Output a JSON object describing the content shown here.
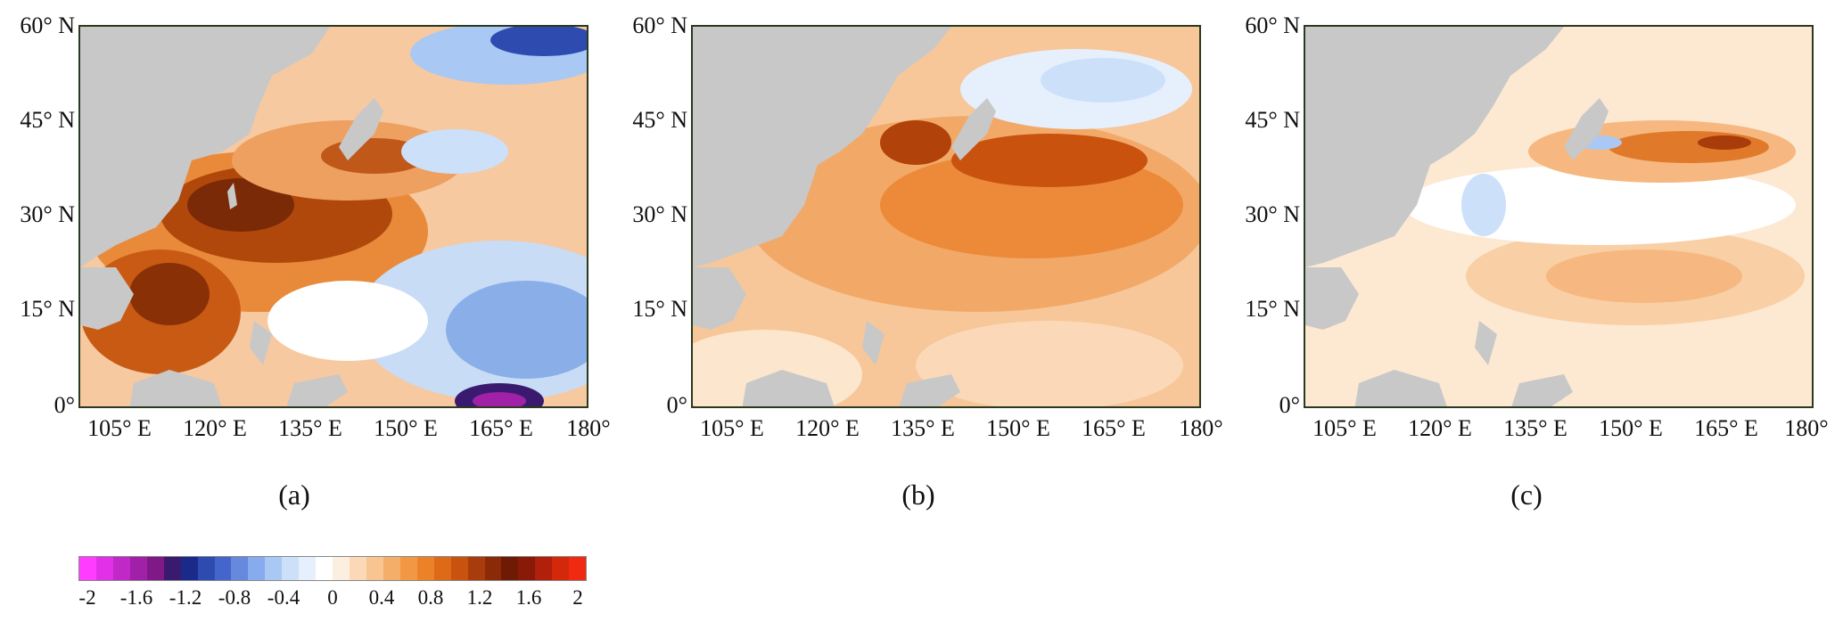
{
  "panels": [
    {
      "id": "a",
      "caption": "(a)"
    },
    {
      "id": "b",
      "caption": "(b)"
    },
    {
      "id": "c",
      "caption": "(c)"
    }
  ],
  "lat_ticks": [
    "60° N",
    "45° N",
    "30° N",
    "15° N",
    "0°"
  ],
  "lon_ticks": [
    "105° E",
    "120° E",
    "135° E",
    "150° E",
    "165° E",
    "180°"
  ],
  "colorbar": {
    "labels": [
      "-2",
      "-1.6",
      "-1.2",
      "-0.8",
      "-0.4",
      "0",
      "0.4",
      "0.8",
      "1.2",
      "1.6",
      "2"
    ],
    "colors": [
      "#ff3cff",
      "#e030e8",
      "#c028c8",
      "#a020a8",
      "#801888",
      "#3a1a6e",
      "#1a2a8a",
      "#2e4bb0",
      "#4466cc",
      "#6688dd",
      "#88aaee",
      "#aac8f4",
      "#cce0fa",
      "#e6f0fd",
      "#ffffff",
      "#fdefe0",
      "#fbd9b8",
      "#f8c490",
      "#f5ae6a",
      "#f29845",
      "#ec8228",
      "#dd6a16",
      "#c8520e",
      "#a83c0a",
      "#8a2a06",
      "#6e1a04",
      "#8a1a08",
      "#b0200a",
      "#d4280c",
      "#f02a10"
    ]
  },
  "colors": {
    "land": "#c8c8c8",
    "frame": "#2b3a1e"
  }
}
